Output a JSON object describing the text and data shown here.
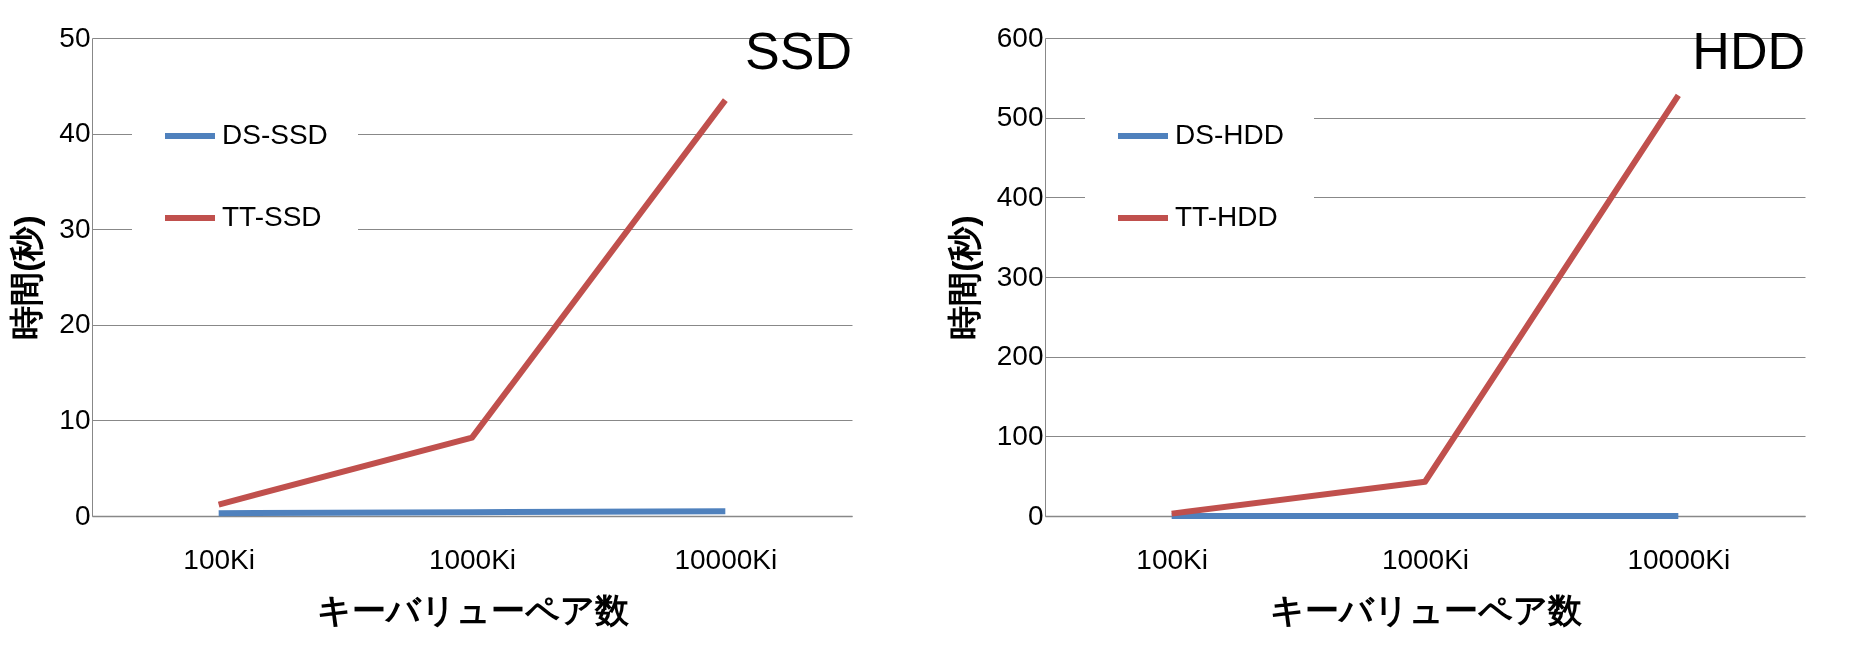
{
  "chart_data": [
    {
      "type": "line",
      "title": "SSD",
      "xlabel": "キーバリューペア数",
      "ylabel": "時間(秒)",
      "categories": [
        "100Ki",
        "1000Ki",
        "10000Ki"
      ],
      "series": [
        {
          "name": "DS-SSD",
          "color": "#4f81bd",
          "values": [
            0.3,
            0.4,
            0.5
          ]
        },
        {
          "name": "TT-SSD",
          "color": "#c0504d",
          "values": [
            1.2,
            8.2,
            43.5
          ]
        }
      ],
      "ylim": [
        0,
        50
      ],
      "yticks": [
        0,
        10,
        20,
        30,
        40,
        50
      ],
      "grid": "y",
      "legend": "top left",
      "marker": "none",
      "line_style": "solid"
    },
    {
      "type": "line",
      "title": "HDD",
      "xlabel": "キーバリューペア数",
      "ylabel": "時間(秒)",
      "categories": [
        "100Ki",
        "1000Ki",
        "10000Ki"
      ],
      "series": [
        {
          "name": "DS-HDD",
          "color": "#4f81bd",
          "values": [
            0,
            0,
            0
          ]
        },
        {
          "name": "TT-HDD",
          "color": "#c0504d",
          "values": [
            3,
            43,
            528
          ]
        }
      ],
      "ylim": [
        0,
        600
      ],
      "yticks": [
        0,
        100,
        200,
        300,
        400,
        500,
        600
      ],
      "grid": "y",
      "legend": "top left",
      "marker": "none",
      "line_style": "solid"
    }
  ]
}
